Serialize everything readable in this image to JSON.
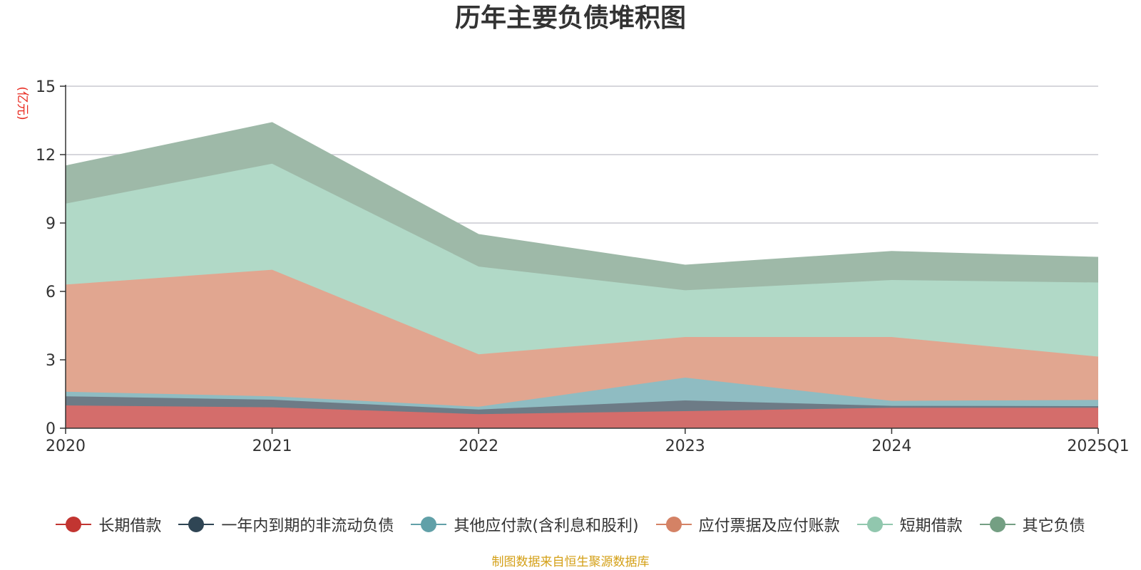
{
  "chart_data": {
    "type": "area",
    "stacked": true,
    "title": "历年主要负债堆积图",
    "unit_label": "(亿元)",
    "categories": [
      "2020",
      "2021",
      "2022",
      "2023",
      "2024",
      "2025Q1"
    ],
    "ylim": [
      0,
      15
    ],
    "y_ticks": [
      "0",
      "3",
      "6",
      "9",
      "12",
      "15"
    ],
    "grid": true,
    "legend_position": "bottom",
    "series": [
      {
        "name": "长期借款",
        "color": "#c23531",
        "fill": "#d46d6b",
        "values": [
          1.0,
          0.92,
          0.62,
          0.75,
          0.9,
          0.9
        ]
      },
      {
        "name": "一年内到期的非流动负债",
        "color": "#2f4554",
        "fill": "#6d7b86",
        "values": [
          0.4,
          0.33,
          0.2,
          0.47,
          0.08,
          0.07
        ]
      },
      {
        "name": "其他应付款(含利息和股利)",
        "color": "#61a0a8",
        "fill": "#8fbcc2",
        "values": [
          0.2,
          0.15,
          0.12,
          1.0,
          0.22,
          0.27
        ]
      },
      {
        "name": "应付票据及应付账款",
        "color": "#d48265",
        "fill": "#e1a690",
        "values": [
          4.7,
          5.55,
          2.3,
          1.78,
          2.8,
          1.9
        ]
      },
      {
        "name": "短期借款",
        "color": "#91c7ae",
        "fill": "#b1d9c7",
        "values": [
          3.55,
          4.65,
          3.85,
          2.05,
          2.5,
          3.25
        ]
      },
      {
        "name": "其它负债",
        "color": "#749f83",
        "fill": "#9eb9a8",
        "values": [
          1.65,
          1.8,
          1.4,
          1.1,
          1.25,
          1.1
        ]
      }
    ]
  },
  "source_note": "制图数据来自恒生聚源数据库",
  "colors": {
    "title": "#333333",
    "axis": "#333333",
    "grid": "#c8c8d0",
    "unit_label": "#e8281e",
    "source_note": "#d4a017"
  }
}
